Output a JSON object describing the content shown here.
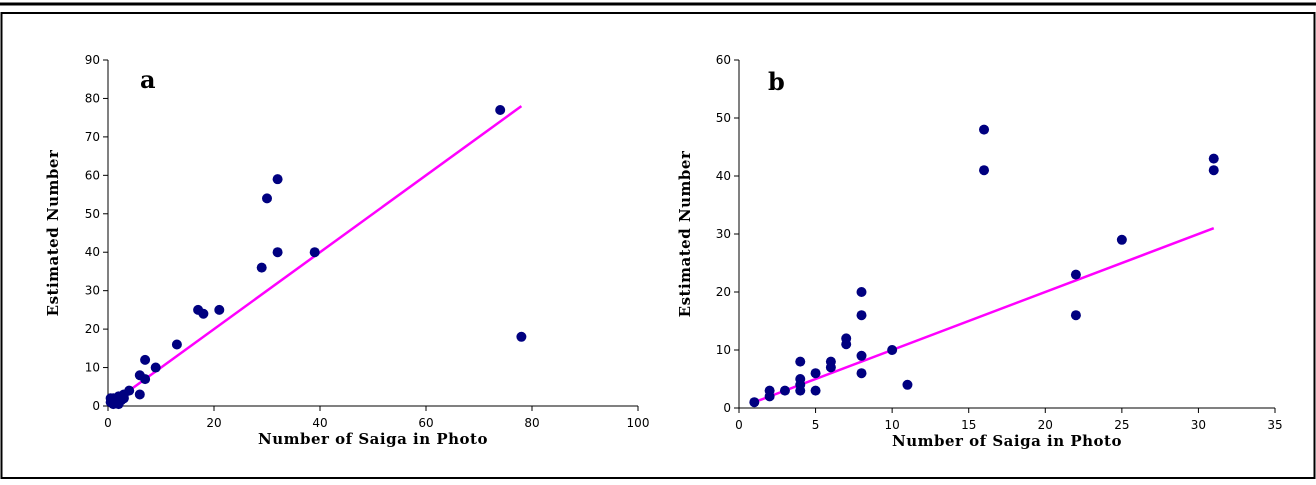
{
  "chart_data": [
    {
      "type": "scatter",
      "panel_label": "a",
      "xlabel": "Number of Saiga in Photo",
      "ylabel": "Estimated Number",
      "xlim": [
        0,
        100
      ],
      "ylim": [
        0,
        90
      ],
      "xticks": [
        0,
        20,
        40,
        60,
        80,
        100
      ],
      "yticks": [
        0,
        10,
        20,
        30,
        40,
        50,
        60,
        70,
        80,
        90
      ],
      "points": [
        [
          0.5,
          1
        ],
        [
          0.5,
          2
        ],
        [
          1,
          0.5
        ],
        [
          1,
          1
        ],
        [
          1,
          2
        ],
        [
          1.5,
          1
        ],
        [
          2,
          0.5
        ],
        [
          2,
          1.5
        ],
        [
          2,
          2.5
        ],
        [
          2.5,
          1.5
        ],
        [
          3,
          2
        ],
        [
          3,
          3
        ],
        [
          4,
          4
        ],
        [
          6,
          3
        ],
        [
          6,
          8
        ],
        [
          7,
          7
        ],
        [
          7,
          12
        ],
        [
          9,
          10
        ],
        [
          13,
          16
        ],
        [
          17,
          25
        ],
        [
          18,
          24
        ],
        [
          21,
          25
        ],
        [
          29,
          36
        ],
        [
          30,
          54
        ],
        [
          32,
          59
        ],
        [
          32,
          40
        ],
        [
          39,
          40
        ],
        [
          74,
          77
        ],
        [
          78,
          18
        ]
      ],
      "trendline": [
        [
          0.5,
          0.5
        ],
        [
          78,
          78
        ]
      ],
      "marker_color": "#000080",
      "line_color": "#ff00ff"
    },
    {
      "type": "scatter",
      "panel_label": "b",
      "xlabel": "Number of Saiga in Photo",
      "ylabel": "Estimated Number",
      "xlim": [
        0,
        35
      ],
      "ylim": [
        0,
        60
      ],
      "xticks": [
        0,
        5,
        10,
        15,
        20,
        25,
        30,
        35
      ],
      "yticks": [
        0,
        10,
        20,
        30,
        40,
        50,
        60
      ],
      "points": [
        [
          1,
          1
        ],
        [
          2,
          2
        ],
        [
          2,
          3
        ],
        [
          3,
          3
        ],
        [
          4,
          3
        ],
        [
          4,
          4
        ],
        [
          4,
          5
        ],
        [
          4,
          8
        ],
        [
          5,
          3
        ],
        [
          5,
          6
        ],
        [
          6,
          7
        ],
        [
          6,
          8
        ],
        [
          7,
          11
        ],
        [
          7,
          12
        ],
        [
          8,
          6
        ],
        [
          8,
          9
        ],
        [
          8,
          16
        ],
        [
          8,
          20
        ],
        [
          10,
          10
        ],
        [
          11,
          4
        ],
        [
          16,
          41
        ],
        [
          16,
          48
        ],
        [
          22,
          16
        ],
        [
          22,
          23
        ],
        [
          25,
          29
        ],
        [
          31,
          41
        ],
        [
          31,
          43
        ]
      ],
      "trendline": [
        [
          1,
          1
        ],
        [
          31,
          31
        ]
      ],
      "marker_color": "#000080",
      "line_color": "#ff00ff"
    }
  ]
}
